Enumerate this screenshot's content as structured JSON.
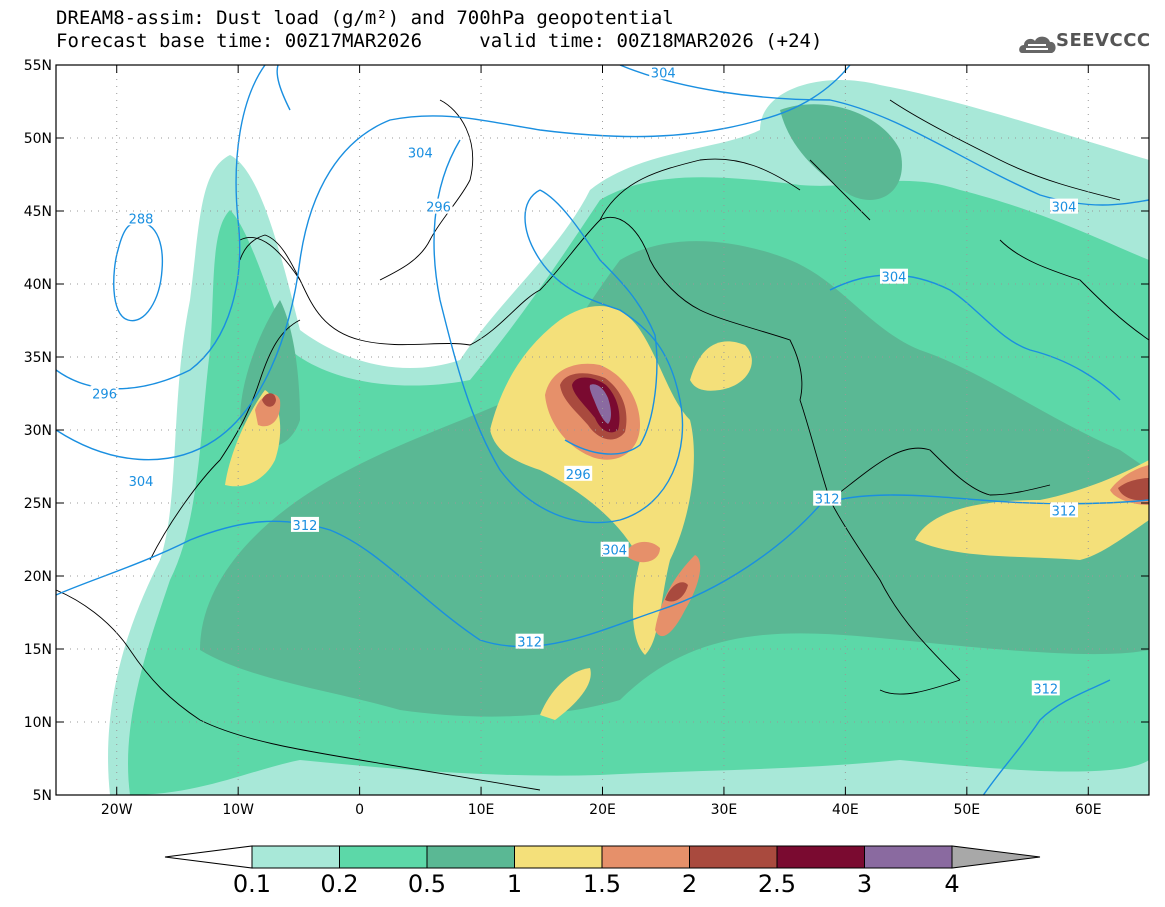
{
  "title": {
    "line1": "DREAM8-assim: Dust load (g/m²) and 700hPa geopotential",
    "line2_base": "Forecast base time: 00Z17MAR2026",
    "line2_valid": "valid time: 00Z18MAR2026 (+24)"
  },
  "logo": {
    "text": "SEEVCCC",
    "icon": "cloud-logo-icon"
  },
  "map": {
    "lon_range": [
      -25,
      65
    ],
    "lat_range": [
      5,
      55
    ],
    "lon_ticks": [
      {
        "v": -20,
        "label": "20W"
      },
      {
        "v": -10,
        "label": "10W"
      },
      {
        "v": 0,
        "label": "0"
      },
      {
        "v": 10,
        "label": "10E"
      },
      {
        "v": 20,
        "label": "20E"
      },
      {
        "v": 30,
        "label": "30E"
      },
      {
        "v": 40,
        "label": "40E"
      },
      {
        "v": 50,
        "label": "50E"
      },
      {
        "v": 60,
        "label": "60E"
      }
    ],
    "lat_ticks": [
      {
        "v": 55,
        "label": "55N"
      },
      {
        "v": 50,
        "label": "50N"
      },
      {
        "v": 45,
        "label": "45N"
      },
      {
        "v": 40,
        "label": "40N"
      },
      {
        "v": 35,
        "label": "35N"
      },
      {
        "v": 30,
        "label": "30N"
      },
      {
        "v": 25,
        "label": "25N"
      },
      {
        "v": 20,
        "label": "20N"
      },
      {
        "v": 15,
        "label": "15N"
      },
      {
        "v": 10,
        "label": "10N"
      },
      {
        "v": 5,
        "label": "5N"
      }
    ],
    "geopotential_labels": [
      {
        "text": "304",
        "lon": 5,
        "lat": 49
      },
      {
        "text": "304",
        "lon": 25,
        "lat": 54.5
      },
      {
        "text": "296",
        "lon": 6.5,
        "lat": 45.3
      },
      {
        "text": "304",
        "lon": 44,
        "lat": 40.5
      },
      {
        "text": "304",
        "lon": 58,
        "lat": 45.3
      },
      {
        "text": "288",
        "lon": -18,
        "lat": 44.5
      },
      {
        "text": "296",
        "lon": -21,
        "lat": 32.5
      },
      {
        "text": "304",
        "lon": -18,
        "lat": 26.5
      },
      {
        "text": "296",
        "lon": 18,
        "lat": 27
      },
      {
        "text": "304",
        "lon": 21,
        "lat": 21.8
      },
      {
        "text": "312",
        "lon": -4.5,
        "lat": 23.5
      },
      {
        "text": "312",
        "lon": 14,
        "lat": 15.5
      },
      {
        "text": "312",
        "lon": 38.5,
        "lat": 25.3
      },
      {
        "text": "312",
        "lon": 58,
        "lat": 24.5
      },
      {
        "text": "312",
        "lon": 56.5,
        "lat": 12.3
      }
    ]
  },
  "colorbar": {
    "levels": [
      "0.1",
      "0.2",
      "0.5",
      "1",
      "1.5",
      "2",
      "2.5",
      "3",
      "4"
    ],
    "colors": [
      "#ffffff",
      "#a8e8d8",
      "#5cd8a8",
      "#5ab894",
      "#f4e07a",
      "#e6906a",
      "#a94a3e",
      "#7a0a30",
      "#8a6aa0",
      "#a8a8a8"
    ]
  },
  "colors": {
    "dust": [
      "#a8e8d8",
      "#5cd8a8",
      "#5ab894",
      "#f4e07a",
      "#e6906a",
      "#a94a3e",
      "#7a0a30",
      "#8a6aa0"
    ],
    "contour": "#1a8fe0"
  }
}
